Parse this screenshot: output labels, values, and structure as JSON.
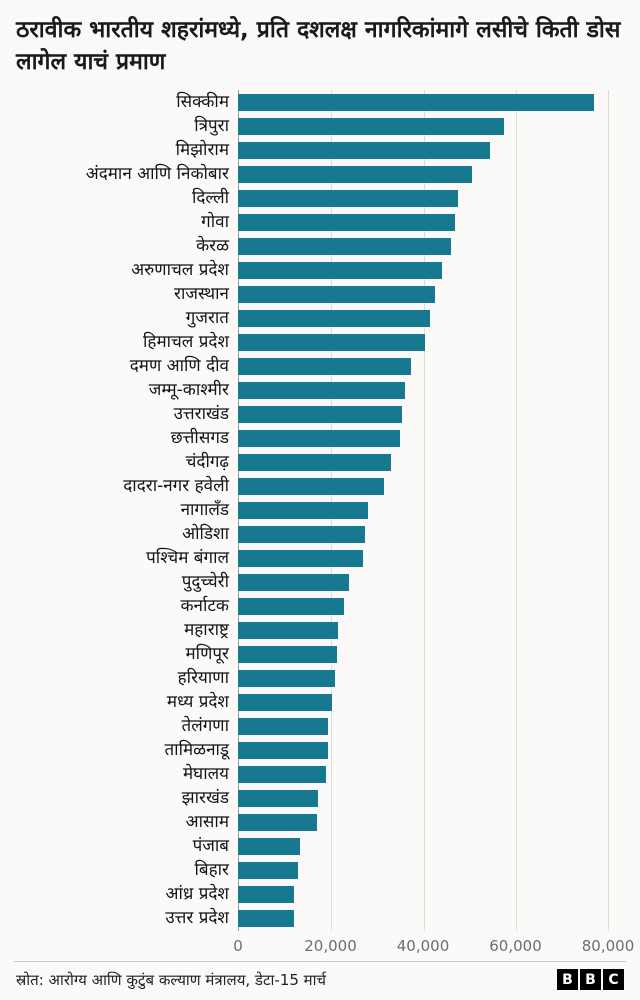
{
  "title": "ठरावीक भारतीय शहरांमध्ये, प्रति दशलक्ष नागरिकांमागे लसीचे किती डोस लागेल याचं प्रमाण",
  "footer": {
    "source": "स्रोत: आरोग्य आणि कुटुंब कल्याण मंत्रालय, डेटा-15 मार्च",
    "logo_letters": {
      "b1": "B",
      "b2": "B",
      "c": "C"
    }
  },
  "chart_data": {
    "type": "bar",
    "orientation": "horizontal",
    "title": "ठरावीक भारतीय शहरांमध्ये, प्रति दशलक्ष नागरिकांमागे लसीचे किती डोस लागेल याचं प्रमाण",
    "xlabel": "",
    "ylabel": "",
    "xlim": [
      0,
      80000
    ],
    "grid": true,
    "bar_color": "#16798f",
    "x_ticks": [
      {
        "value": 0,
        "label": "0"
      },
      {
        "value": 20000,
        "label": "20,000"
      },
      {
        "value": 40000,
        "label": "40,000"
      },
      {
        "value": 60000,
        "label": "60,000"
      },
      {
        "value": 80000,
        "label": "80,000"
      }
    ],
    "categories": [
      "सिक्कीम",
      "त्रिपुरा",
      "मिझोराम",
      "अंदमान आणि निकोबार",
      "दिल्ली",
      "गोवा",
      "केरळ",
      "अरुणाचल प्रदेश",
      "राजस्थान",
      "गुजरात",
      "हिमाचल प्रदेश",
      "दमण आणि दीव",
      "जम्मू-काश्मीर",
      "उत्तराखंड",
      "छत्तीसगड",
      "चंदीगढ़",
      "दादरा-नगर हवेली",
      "नागालँड",
      "ओडिशा",
      "पश्चिम बंगाल",
      "पुदुच्चेरी",
      "कर्नाटक",
      "महाराष्ट्र",
      "मणिपूर",
      "हरियाणा",
      "मध्य प्रदेश",
      "तेलंगणा",
      "तामिळनाडू",
      "मेघालय",
      "झारखंड",
      "आसाम",
      "पंजाब",
      "बिहार",
      "आंध्र प्रदेश",
      "उत्तर प्रदेश"
    ],
    "values": [
      77000,
      57500,
      54500,
      50500,
      47500,
      47000,
      46000,
      44000,
      42500,
      41500,
      40500,
      37500,
      36000,
      35500,
      35000,
      33000,
      31500,
      28000,
      27500,
      27000,
      24000,
      23000,
      21700,
      21300,
      20900,
      20300,
      19500,
      19400,
      19000,
      17300,
      17000,
      13500,
      13000,
      12200,
      12000
    ]
  }
}
